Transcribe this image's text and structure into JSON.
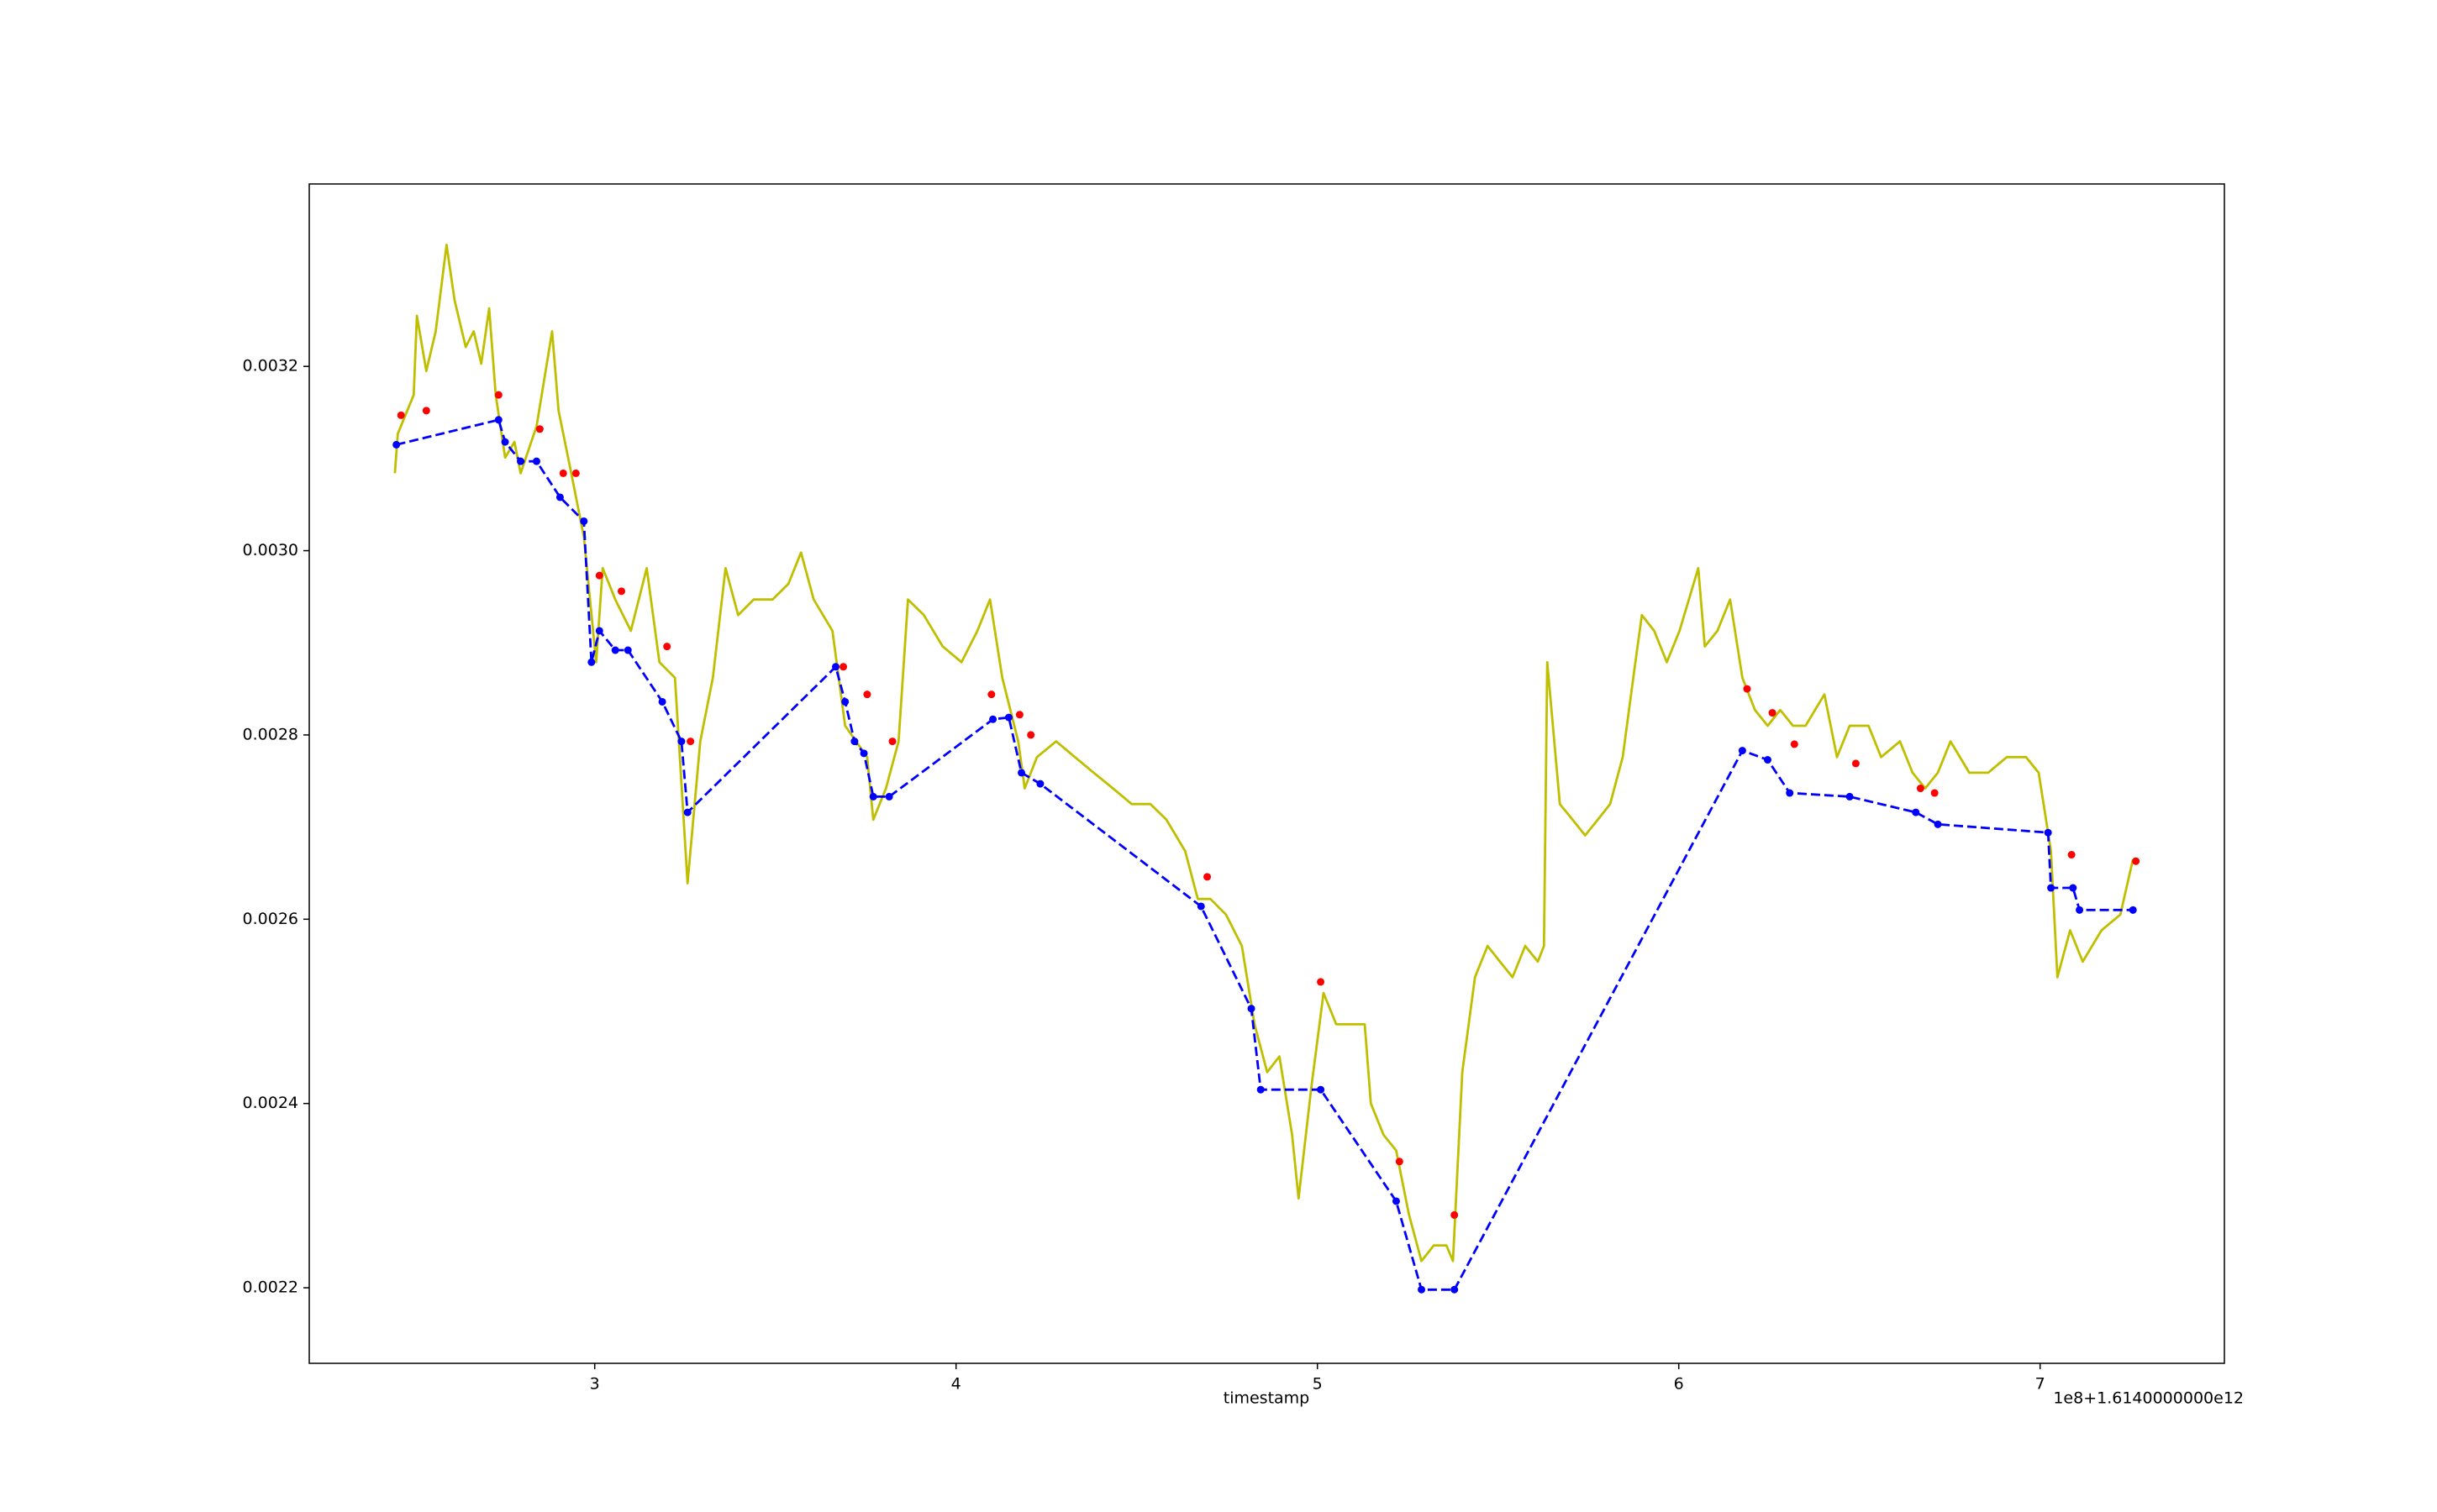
{
  "chart_data": {
    "type": "line",
    "x_label": "timestamp",
    "x_offset_label": "1e8+1.6140000000e12",
    "xlim": [
      2.21,
      7.51
    ],
    "ylim": [
      0.002118,
      0.003398
    ],
    "xticks": [
      3,
      4,
      5,
      6,
      7
    ],
    "yticks": [
      0.0022,
      0.0024,
      0.0026,
      0.0028,
      {
        "value": 0.003,
        "label": "0.0030"
      },
      0.0032
    ],
    "grid": false,
    "series": [
      {
        "color": "#bfbf00",
        "linestyle": "solid",
        "marker": "none",
        "x": [
          2.447,
          2.455,
          2.499,
          2.508,
          2.534,
          2.56,
          2.59,
          2.612,
          2.643,
          2.665,
          2.686,
          2.708,
          2.726,
          2.752,
          2.778,
          2.795,
          2.839,
          2.882,
          2.9,
          2.935,
          2.97,
          3.004,
          3.022,
          3.057,
          3.1,
          3.144,
          3.179,
          3.222,
          3.257,
          3.292,
          3.327,
          3.362,
          3.397,
          3.44,
          3.492,
          3.536,
          3.571,
          3.606,
          3.658,
          3.693,
          3.754,
          3.771,
          3.806,
          3.841,
          3.867,
          3.911,
          3.963,
          4.015,
          4.059,
          4.094,
          4.128,
          4.172,
          4.19,
          4.224,
          4.277,
          4.329,
          4.381,
          4.434,
          4.486,
          4.538,
          4.582,
          4.634,
          4.669,
          4.704,
          4.747,
          4.791,
          4.826,
          4.861,
          4.895,
          4.93,
          4.948,
          4.983,
          5.017,
          5.052,
          5.087,
          5.131,
          5.148,
          5.183,
          5.218,
          5.253,
          5.288,
          5.322,
          5.357,
          5.375,
          5.401,
          5.436,
          5.471,
          5.505,
          5.54,
          5.575,
          5.61,
          5.627,
          5.636,
          5.671,
          5.706,
          5.741,
          5.776,
          5.81,
          5.845,
          5.88,
          5.898,
          5.932,
          5.967,
          6.002,
          6.054,
          6.072,
          6.107,
          6.142,
          6.176,
          6.211,
          6.246,
          6.281,
          6.316,
          6.351,
          6.403,
          6.438,
          6.473,
          6.525,
          6.56,
          6.612,
          6.647,
          6.682,
          6.717,
          6.752,
          6.804,
          6.856,
          6.908,
          6.961,
          6.996,
          7.03,
          7.048,
          7.083,
          7.118,
          7.17,
          7.222,
          7.257
        ],
        "values": [
          0.003084,
          0.003127,
          0.003169,
          0.003255,
          0.003195,
          0.003238,
          0.003332,
          0.003272,
          0.003221,
          0.003238,
          0.003203,
          0.003263,
          0.003169,
          0.003101,
          0.003118,
          0.003084,
          0.003135,
          0.003238,
          0.003152,
          0.003084,
          0.003015,
          0.002879,
          0.002981,
          0.002947,
          0.002913,
          0.002981,
          0.002879,
          0.002862,
          0.002639,
          0.002793,
          0.002862,
          0.002981,
          0.00293,
          0.002947,
          0.002947,
          0.002964,
          0.002998,
          0.002947,
          0.002913,
          0.00281,
          0.002776,
          0.002708,
          0.002742,
          0.002793,
          0.002947,
          0.00293,
          0.002896,
          0.002879,
          0.002913,
          0.002947,
          0.002862,
          0.002793,
          0.002742,
          0.002776,
          0.002793,
          0.002776,
          0.002759,
          0.002742,
          0.002725,
          0.002725,
          0.002708,
          0.002674,
          0.002622,
          0.002622,
          0.002605,
          0.002571,
          0.002486,
          0.002434,
          0.002451,
          0.002366,
          0.002297,
          0.002417,
          0.00252,
          0.002486,
          0.002486,
          0.002486,
          0.0024,
          0.002366,
          0.002349,
          0.00228,
          0.002229,
          0.002246,
          0.002246,
          0.002229,
          0.002434,
          0.002537,
          0.002571,
          0.002554,
          0.002537,
          0.002571,
          0.002554,
          0.002571,
          0.002879,
          0.002725,
          0.002708,
          0.002691,
          0.002708,
          0.002725,
          0.002776,
          0.002879,
          0.00293,
          0.002913,
          0.002879,
          0.002913,
          0.002981,
          0.002896,
          0.002913,
          0.002947,
          0.002862,
          0.002827,
          0.00281,
          0.002827,
          0.00281,
          0.00281,
          0.002844,
          0.002776,
          0.00281,
          0.00281,
          0.002776,
          0.002793,
          0.002759,
          0.002742,
          0.002759,
          0.002793,
          0.002759,
          0.002759,
          0.002776,
          0.002776,
          0.002759,
          0.002674,
          0.002537,
          0.002588,
          0.002554,
          0.002588,
          0.002605,
          0.002665
        ]
      },
      {
        "color": "#0000ff",
        "linestyle": "dashed",
        "marker": "circle",
        "x": [
          2.451,
          2.734,
          2.752,
          2.795,
          2.839,
          2.904,
          2.97,
          2.991,
          3.013,
          3.057,
          3.092,
          3.187,
          3.24,
          3.257,
          3.667,
          3.693,
          3.719,
          3.745,
          3.771,
          3.815,
          4.102,
          4.146,
          4.181,
          4.233,
          4.678,
          4.817,
          4.843,
          5.009,
          5.218,
          5.288,
          5.379,
          6.176,
          6.246,
          6.307,
          6.473,
          6.656,
          6.717,
          7.022,
          7.03,
          7.091,
          7.109,
          7.257
        ],
        "values": [
          0.003115,
          0.003142,
          0.003118,
          0.003097,
          0.003097,
          0.003058,
          0.003032,
          0.002879,
          0.002913,
          0.002892,
          0.002892,
          0.002836,
          0.002793,
          0.002716,
          0.002874,
          0.002836,
          0.002793,
          0.00278,
          0.002733,
          0.002733,
          0.002817,
          0.002819,
          0.002759,
          0.002747,
          0.002614,
          0.002503,
          0.002415,
          0.002415,
          0.002294,
          0.002198,
          0.002198,
          0.002783,
          0.002773,
          0.002737,
          0.002733,
          0.002716,
          0.002703,
          0.002694,
          0.002634,
          0.002634,
          0.00261,
          0.00261
        ]
      },
      {
        "color": "#ff0000",
        "linestyle": "none",
        "marker": "circle",
        "x": [
          2.464,
          2.534,
          2.734,
          2.848,
          2.913,
          2.948,
          3.013,
          3.074,
          3.2,
          3.265,
          3.688,
          3.754,
          3.824,
          4.098,
          4.176,
          4.207,
          4.695,
          5.009,
          5.227,
          5.379,
          6.189,
          6.259,
          6.32,
          6.49,
          6.669,
          6.708,
          7.087,
          7.265
        ],
        "values": [
          0.003147,
          0.003152,
          0.003169,
          0.003132,
          0.003084,
          0.003084,
          0.002973,
          0.002956,
          0.002896,
          0.002793,
          0.002874,
          0.002844,
          0.002793,
          0.002844,
          0.002822,
          0.0028,
          0.002646,
          0.002532,
          0.002337,
          0.002279,
          0.00285,
          0.002824,
          0.00279,
          0.002769,
          0.002742,
          0.002737,
          0.00267,
          0.002663
        ]
      }
    ]
  }
}
